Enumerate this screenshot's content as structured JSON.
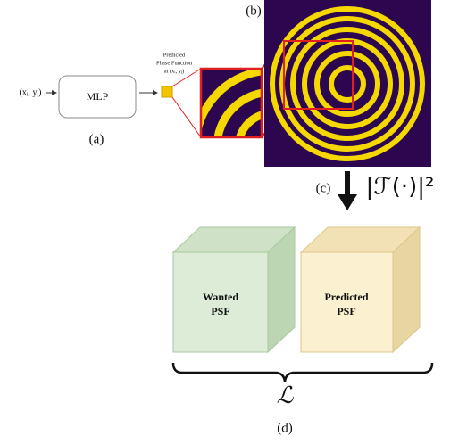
{
  "input_label": "(xᵢ, yᵢ)",
  "mlp": "MLP",
  "label_a": "(a)",
  "phase_caption": [
    "Predicted",
    "Phase Function",
    "at (xᵢ, yⱼ)"
  ],
  "label_b": "(b)",
  "label_c": "(c)",
  "transform": "|ℱ(·)|²",
  "wanted_psf": [
    "Wanted",
    "PSF"
  ],
  "predicted_psf": [
    "Predicted",
    "PSF"
  ],
  "loss": "ℒ",
  "label_d": "(d)"
}
